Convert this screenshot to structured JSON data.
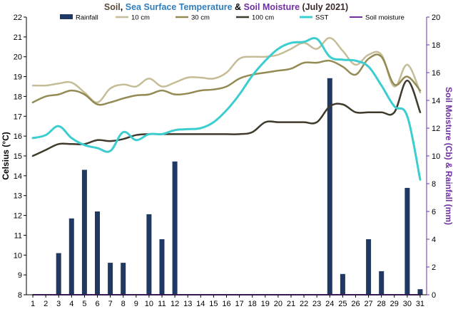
{
  "chart_data": {
    "type": "bar+line",
    "title_parts": [
      {
        "text": "Soil",
        "color": "#5a4a3a"
      },
      {
        "text": ", ",
        "color": "#000000"
      },
      {
        "text": "Sea Surface Temperature",
        "color": "#2f7fc0"
      },
      {
        "text": " & ",
        "color": "#000000"
      },
      {
        "text": "Soil Moisture",
        "color": "#7030a0"
      },
      {
        "text": " (July 2021)",
        "color": "#3a2a2a"
      }
    ],
    "ylabel_left": "Celsius (°C)",
    "ylabel_right": "Soil Moisture (Cb) & Rainfall (mm)",
    "ylim_left": [
      8,
      22
    ],
    "ylim_right": [
      0,
      20
    ],
    "x_ticks": [
      "1",
      "2",
      "3",
      "4",
      "5",
      "6",
      "7",
      "8",
      "9",
      "10",
      "11",
      "12",
      "13",
      "14",
      "15",
      "16",
      "17",
      "18",
      "19",
      "20",
      "21",
      "22",
      "23",
      "24",
      "25",
      "26",
      "27",
      "28",
      "29",
      "30",
      "31"
    ],
    "y_left_ticks": [
      "8",
      "9",
      "10",
      "11",
      "12",
      "13",
      "14",
      "15",
      "16",
      "17",
      "18",
      "19",
      "20",
      "21",
      "22"
    ],
    "y_right_ticks": [
      "0",
      "2",
      "4",
      "6",
      "8",
      "10",
      "12",
      "14",
      "16",
      "18",
      "20"
    ],
    "grid": false,
    "legend_position": "top",
    "colors": {
      "rainfall": "#1f3864",
      "ten_cm": "#c4bd97",
      "thirty_cm": "#948a54",
      "hundred_cm": "#3f3a2c",
      "sst": "#3ccdd0",
      "soil_moisture": "#7030a0",
      "right_axis": "#7030a0"
    },
    "rainfall": {
      "name": "Rainfall",
      "x": [
        3,
        4,
        5,
        6,
        7,
        8,
        10,
        11,
        12,
        24,
        25,
        27,
        28,
        30,
        31
      ],
      "values": [
        3.0,
        5.5,
        9.0,
        6.0,
        2.3,
        2.3,
        5.8,
        4.0,
        9.6,
        15.6,
        1.5,
        4.0,
        1.7,
        7.7,
        0.4
      ]
    },
    "series": [
      {
        "name": "10 cm",
        "key": "ten_cm",
        "axis": "left",
        "width": 2.5,
        "x": [
          1,
          2,
          3,
          4,
          5,
          6,
          7,
          8,
          9,
          10,
          11,
          12,
          13,
          14,
          15,
          16,
          17,
          18,
          19,
          20,
          21,
          22,
          23,
          24,
          25,
          26,
          27,
          28,
          29,
          30,
          31
        ],
        "values": [
          18.55,
          18.55,
          18.65,
          18.7,
          18.2,
          17.7,
          18.4,
          18.6,
          18.5,
          18.9,
          18.5,
          18.7,
          18.95,
          18.95,
          18.9,
          19.2,
          19.9,
          20.0,
          20.0,
          20.1,
          20.4,
          20.7,
          20.4,
          20.95,
          20.3,
          19.6,
          20.1,
          20.1,
          18.5,
          19.6,
          18.2
        ]
      },
      {
        "name": "30 cm",
        "key": "thirty_cm",
        "axis": "left",
        "width": 2.5,
        "x": [
          1,
          2,
          3,
          4,
          5,
          6,
          7,
          8,
          9,
          10,
          11,
          12,
          13,
          14,
          15,
          16,
          17,
          18,
          19,
          20,
          21,
          22,
          23,
          24,
          25,
          26,
          27,
          28,
          29,
          30,
          31
        ],
        "values": [
          17.7,
          18.0,
          18.1,
          18.3,
          18.1,
          17.6,
          17.7,
          17.9,
          18.05,
          18.1,
          18.3,
          18.1,
          18.15,
          18.3,
          18.35,
          18.5,
          18.9,
          19.1,
          19.2,
          19.3,
          19.4,
          19.7,
          19.7,
          19.8,
          19.5,
          19.1,
          19.9,
          20.0,
          18.6,
          19.0,
          18.3
        ]
      },
      {
        "name": "100 cm",
        "key": "hundred_cm",
        "axis": "left",
        "width": 2.5,
        "x": [
          1,
          2,
          3,
          4,
          5,
          6,
          7,
          8,
          9,
          10,
          11,
          12,
          13,
          14,
          15,
          16,
          17,
          18,
          19,
          20,
          21,
          22,
          23,
          24,
          25,
          26,
          27,
          28,
          29,
          30,
          31
        ],
        "values": [
          15.0,
          15.3,
          15.6,
          15.6,
          15.6,
          15.8,
          15.75,
          15.85,
          16.05,
          16.1,
          16.1,
          16.1,
          16.1,
          16.1,
          16.1,
          16.1,
          16.1,
          16.2,
          16.7,
          16.7,
          16.7,
          16.7,
          16.7,
          17.5,
          17.6,
          17.2,
          17.2,
          17.2,
          17.2,
          18.8,
          17.2
        ]
      },
      {
        "name": "SST",
        "key": "sst",
        "axis": "left",
        "width": 3,
        "x": [
          1,
          2,
          3,
          4,
          5,
          6,
          7,
          8,
          9,
          10,
          11,
          12,
          13,
          14,
          15,
          16,
          17,
          18,
          19,
          20,
          21,
          22,
          23,
          24,
          25,
          26,
          27,
          28,
          29,
          30,
          31
        ],
        "values": [
          15.9,
          16.05,
          16.5,
          15.9,
          15.55,
          15.4,
          15.25,
          16.2,
          15.8,
          16.1,
          16.1,
          16.3,
          16.35,
          16.4,
          16.7,
          17.3,
          18.1,
          19.05,
          19.8,
          20.4,
          20.7,
          20.75,
          20.9,
          20.0,
          19.85,
          19.8,
          19.5,
          18.55,
          17.5,
          17.0,
          13.8
        ]
      },
      {
        "name": "Soil moisture",
        "key": "soil_moisture",
        "axis": "right",
        "width": 2,
        "x": [
          1,
          2,
          3,
          4,
          5,
          6,
          7,
          8,
          9,
          10,
          11,
          12,
          13,
          14,
          15,
          16,
          17,
          18,
          19,
          20,
          21,
          22,
          23,
          24,
          25,
          26,
          27,
          28,
          29,
          30,
          31
        ],
        "values": [
          0,
          0,
          0,
          0,
          0,
          0,
          0,
          0,
          0,
          0,
          0,
          0,
          0,
          0,
          0,
          0,
          0,
          0,
          0,
          0,
          0,
          0,
          0,
          0,
          0,
          0,
          0,
          0,
          0,
          0,
          0
        ]
      }
    ]
  }
}
